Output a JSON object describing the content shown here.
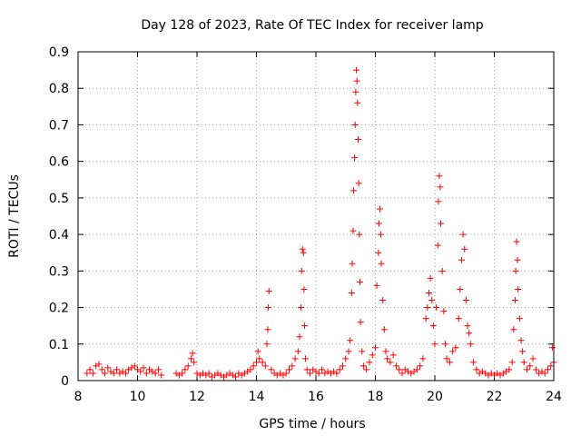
{
  "chart_data": {
    "type": "scatter",
    "title": "Day 128 of 2023, Rate Of TEC Index for receiver lamp",
    "xlabel": "GPS time / hours",
    "ylabel": "ROTI / TECUs",
    "xlim": [
      8,
      24
    ],
    "ylim": [
      0,
      0.9
    ],
    "xticks": [
      8,
      10,
      12,
      14,
      16,
      18,
      20,
      22,
      24
    ],
    "yticks": [
      0,
      0.1,
      0.2,
      0.3,
      0.4,
      0.5,
      0.6,
      0.7,
      0.8,
      0.9
    ],
    "grid": true,
    "marker": "+",
    "color": "#ff0000",
    "series": [
      {
        "name": "ROTI",
        "points": [
          [
            8.3,
            0.02
          ],
          [
            8.4,
            0.03
          ],
          [
            8.5,
            0.02
          ],
          [
            8.6,
            0.04
          ],
          [
            8.7,
            0.045
          ],
          [
            8.8,
            0.03
          ],
          [
            8.9,
            0.02
          ],
          [
            9.0,
            0.035
          ],
          [
            9.1,
            0.025
          ],
          [
            9.2,
            0.02
          ],
          [
            9.3,
            0.03
          ],
          [
            9.4,
            0.02
          ],
          [
            9.5,
            0.025
          ],
          [
            9.6,
            0.02
          ],
          [
            9.7,
            0.03
          ],
          [
            9.8,
            0.035
          ],
          [
            9.9,
            0.04
          ],
          [
            10.0,
            0.03
          ],
          [
            10.1,
            0.025
          ],
          [
            10.2,
            0.035
          ],
          [
            10.3,
            0.02
          ],
          [
            10.4,
            0.03
          ],
          [
            10.5,
            0.025
          ],
          [
            10.6,
            0.02
          ],
          [
            10.7,
            0.03
          ],
          [
            10.8,
            0.015
          ],
          [
            11.3,
            0.02
          ],
          [
            11.4,
            0.015
          ],
          [
            11.5,
            0.02
          ],
          [
            11.6,
            0.03
          ],
          [
            11.7,
            0.04
          ],
          [
            11.8,
            0.06
          ],
          [
            11.85,
            0.075
          ],
          [
            11.9,
            0.05
          ],
          [
            12.0,
            0.02
          ],
          [
            12.1,
            0.015
          ],
          [
            12.2,
            0.02
          ],
          [
            12.3,
            0.015
          ],
          [
            12.4,
            0.02
          ],
          [
            12.5,
            0.01
          ],
          [
            12.6,
            0.015
          ],
          [
            12.7,
            0.02
          ],
          [
            12.8,
            0.015
          ],
          [
            12.9,
            0.01
          ],
          [
            13.0,
            0.015
          ],
          [
            13.1,
            0.02
          ],
          [
            13.2,
            0.015
          ],
          [
            13.3,
            0.01
          ],
          [
            13.4,
            0.02
          ],
          [
            13.5,
            0.015
          ],
          [
            13.6,
            0.02
          ],
          [
            13.7,
            0.025
          ],
          [
            13.8,
            0.03
          ],
          [
            13.9,
            0.04
          ],
          [
            14.0,
            0.05
          ],
          [
            14.05,
            0.08
          ],
          [
            14.1,
            0.06
          ],
          [
            14.2,
            0.05
          ],
          [
            14.3,
            0.04
          ],
          [
            14.35,
            0.1
          ],
          [
            14.38,
            0.14
          ],
          [
            14.4,
            0.2
          ],
          [
            14.42,
            0.245
          ],
          [
            14.5,
            0.03
          ],
          [
            14.6,
            0.02
          ],
          [
            14.7,
            0.015
          ],
          [
            14.8,
            0.02
          ],
          [
            14.9,
            0.015
          ],
          [
            15.0,
            0.02
          ],
          [
            15.1,
            0.03
          ],
          [
            15.2,
            0.04
          ],
          [
            15.3,
            0.06
          ],
          [
            15.4,
            0.08
          ],
          [
            15.45,
            0.12
          ],
          [
            15.5,
            0.2
          ],
          [
            15.52,
            0.3
          ],
          [
            15.55,
            0.36
          ],
          [
            15.58,
            0.35
          ],
          [
            15.6,
            0.25
          ],
          [
            15.62,
            0.15
          ],
          [
            15.65,
            0.06
          ],
          [
            15.7,
            0.03
          ],
          [
            15.8,
            0.02
          ],
          [
            15.9,
            0.03
          ],
          [
            16.0,
            0.025
          ],
          [
            16.1,
            0.02
          ],
          [
            16.2,
            0.03
          ],
          [
            16.3,
            0.02
          ],
          [
            16.4,
            0.025
          ],
          [
            16.5,
            0.02
          ],
          [
            16.6,
            0.025
          ],
          [
            16.7,
            0.02
          ],
          [
            16.8,
            0.03
          ],
          [
            16.9,
            0.04
          ],
          [
            17.0,
            0.06
          ],
          [
            17.1,
            0.08
          ],
          [
            17.15,
            0.11
          ],
          [
            17.2,
            0.24
          ],
          [
            17.22,
            0.32
          ],
          [
            17.25,
            0.41
          ],
          [
            17.27,
            0.52
          ],
          [
            17.3,
            0.61
          ],
          [
            17.32,
            0.7
          ],
          [
            17.34,
            0.79
          ],
          [
            17.36,
            0.85
          ],
          [
            17.38,
            0.82
          ],
          [
            17.4,
            0.76
          ],
          [
            17.42,
            0.66
          ],
          [
            17.44,
            0.54
          ],
          [
            17.46,
            0.4
          ],
          [
            17.48,
            0.27
          ],
          [
            17.5,
            0.16
          ],
          [
            17.55,
            0.08
          ],
          [
            17.6,
            0.04
          ],
          [
            17.7,
            0.03
          ],
          [
            17.8,
            0.05
          ],
          [
            17.9,
            0.07
          ],
          [
            18.0,
            0.09
          ],
          [
            18.05,
            0.26
          ],
          [
            18.1,
            0.35
          ],
          [
            18.12,
            0.43
          ],
          [
            18.15,
            0.47
          ],
          [
            18.18,
            0.4
          ],
          [
            18.2,
            0.32
          ],
          [
            18.25,
            0.22
          ],
          [
            18.3,
            0.14
          ],
          [
            18.35,
            0.08
          ],
          [
            18.4,
            0.06
          ],
          [
            18.5,
            0.05
          ],
          [
            18.6,
            0.07
          ],
          [
            18.7,
            0.04
          ],
          [
            18.8,
            0.03
          ],
          [
            18.9,
            0.02
          ],
          [
            19.0,
            0.03
          ],
          [
            19.1,
            0.025
          ],
          [
            19.2,
            0.02
          ],
          [
            19.3,
            0.025
          ],
          [
            19.4,
            0.03
          ],
          [
            19.5,
            0.04
          ],
          [
            19.6,
            0.06
          ],
          [
            19.7,
            0.17
          ],
          [
            19.75,
            0.2
          ],
          [
            19.8,
            0.24
          ],
          [
            19.85,
            0.28
          ],
          [
            19.9,
            0.22
          ],
          [
            19.95,
            0.15
          ],
          [
            20.0,
            0.1
          ],
          [
            20.05,
            0.2
          ],
          [
            20.1,
            0.37
          ],
          [
            20.12,
            0.49
          ],
          [
            20.15,
            0.56
          ],
          [
            20.18,
            0.53
          ],
          [
            20.2,
            0.43
          ],
          [
            20.25,
            0.3
          ],
          [
            20.3,
            0.19
          ],
          [
            20.35,
            0.1
          ],
          [
            20.4,
            0.06
          ],
          [
            20.5,
            0.05
          ],
          [
            20.6,
            0.08
          ],
          [
            20.7,
            0.09
          ],
          [
            20.8,
            0.17
          ],
          [
            20.85,
            0.25
          ],
          [
            20.9,
            0.33
          ],
          [
            20.95,
            0.4
          ],
          [
            21.0,
            0.36
          ],
          [
            21.05,
            0.22
          ],
          [
            21.1,
            0.15
          ],
          [
            21.15,
            0.13
          ],
          [
            21.2,
            0.1
          ],
          [
            21.3,
            0.05
          ],
          [
            21.4,
            0.03
          ],
          [
            21.5,
            0.02
          ],
          [
            21.6,
            0.025
          ],
          [
            21.7,
            0.02
          ],
          [
            21.8,
            0.015
          ],
          [
            21.9,
            0.02
          ],
          [
            22.0,
            0.015
          ],
          [
            22.1,
            0.02
          ],
          [
            22.2,
            0.015
          ],
          [
            22.3,
            0.02
          ],
          [
            22.4,
            0.025
          ],
          [
            22.5,
            0.03
          ],
          [
            22.6,
            0.05
          ],
          [
            22.65,
            0.14
          ],
          [
            22.7,
            0.22
          ],
          [
            22.72,
            0.3
          ],
          [
            22.75,
            0.38
          ],
          [
            22.78,
            0.33
          ],
          [
            22.8,
            0.25
          ],
          [
            22.85,
            0.17
          ],
          [
            22.9,
            0.11
          ],
          [
            22.95,
            0.08
          ],
          [
            23.0,
            0.05
          ],
          [
            23.1,
            0.03
          ],
          [
            23.2,
            0.04
          ],
          [
            23.3,
            0.06
          ],
          [
            23.4,
            0.03
          ],
          [
            23.5,
            0.02
          ],
          [
            23.6,
            0.025
          ],
          [
            23.7,
            0.02
          ],
          [
            23.8,
            0.03
          ],
          [
            23.9,
            0.04
          ],
          [
            23.95,
            0.09
          ],
          [
            24.0,
            0.05
          ]
        ]
      }
    ]
  }
}
